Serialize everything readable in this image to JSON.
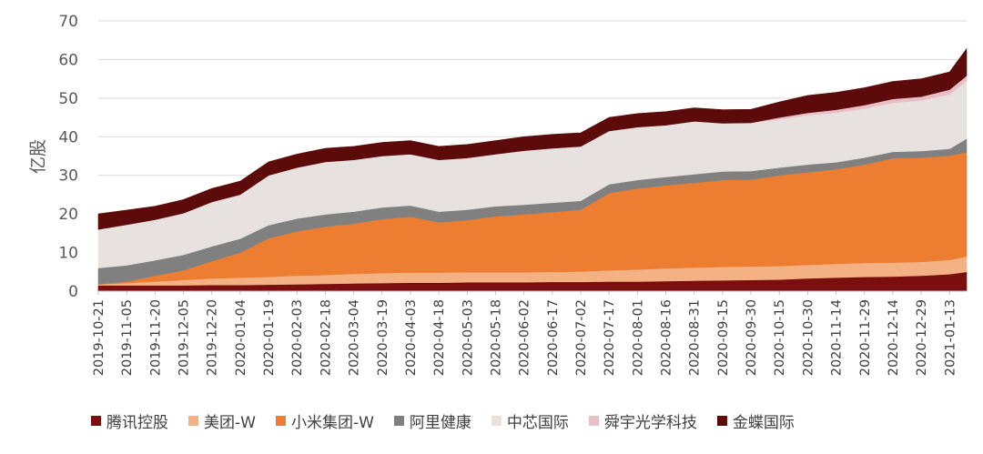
{
  "chart_data": {
    "type": "area",
    "stacked": true,
    "ylabel": "亿股",
    "ylim": [
      0,
      70
    ],
    "yticks": [
      0,
      10,
      20,
      30,
      40,
      50,
      60,
      70
    ],
    "grid": true,
    "legend_position": "bottom",
    "x": [
      "2019-10-21",
      "2019-11-05",
      "2019-11-20",
      "2019-12-05",
      "2019-12-20",
      "2020-01-04",
      "2020-01-19",
      "2020-02-03",
      "2020-02-18",
      "2020-03-04",
      "2020-03-19",
      "2020-04-03",
      "2020-04-18",
      "2020-05-03",
      "2020-05-18",
      "2020-06-02",
      "2020-06-17",
      "2020-07-02",
      "2020-07-17",
      "2020-08-01",
      "2020-08-16",
      "2020-08-31",
      "2020-09-15",
      "2020-09-30",
      "2020-10-15",
      "2020-10-30",
      "2020-11-14",
      "2020-11-29",
      "2020-12-14",
      "2020-12-29",
      "2021-01-13",
      "2021-01-22"
    ],
    "x_tick_labels": [
      "2019-10-21",
      "2019-11-05",
      "2019-11-20",
      "2019-12-05",
      "2019-12-20",
      "2020-01-04",
      "2020-01-19",
      "2020-02-03",
      "2020-02-18",
      "2020-03-04",
      "2020-03-19",
      "2020-04-03",
      "2020-04-18",
      "2020-05-03",
      "2020-05-18",
      "2020-06-02",
      "2020-06-17",
      "2020-07-02",
      "2020-07-17",
      "2020-08-01",
      "2020-08-16",
      "2020-08-31",
      "2020-09-15",
      "2020-09-30",
      "2020-10-15",
      "2020-10-30",
      "2020-11-14",
      "2020-11-29",
      "2020-12-14",
      "2020-12-29",
      "2021-01-13"
    ],
    "series": [
      {
        "name": "腾讯控股",
        "color": "#7b0e0e",
        "values": [
          1.5,
          1.5,
          1.5,
          1.5,
          1.6,
          1.6,
          1.7,
          1.8,
          1.9,
          2.0,
          2.1,
          2.2,
          2.2,
          2.3,
          2.3,
          2.3,
          2.4,
          2.4,
          2.5,
          2.5,
          2.6,
          2.7,
          2.8,
          2.9,
          3.0,
          3.3,
          3.5,
          3.7,
          3.8,
          4.0,
          4.4,
          5.0
        ]
      },
      {
        "name": "美团-W",
        "color": "#f4b183",
        "values": [
          0.3,
          0.6,
          1.0,
          1.4,
          1.7,
          1.9,
          2.0,
          2.2,
          2.3,
          2.5,
          2.6,
          2.6,
          2.6,
          2.6,
          2.6,
          2.6,
          2.6,
          2.7,
          2.9,
          3.1,
          3.3,
          3.4,
          3.5,
          3.5,
          3.5,
          3.5,
          3.6,
          3.6,
          3.6,
          3.6,
          3.7,
          4.0
        ]
      },
      {
        "name": "小米集团-W",
        "color": "#ed7d31",
        "values": [
          0.0,
          0.4,
          1.5,
          2.5,
          4.5,
          6.5,
          10.0,
          11.5,
          12.5,
          13.0,
          14.0,
          14.5,
          13.0,
          13.5,
          14.5,
          15.0,
          15.5,
          16.0,
          20.0,
          21.0,
          21.5,
          22.0,
          22.5,
          22.5,
          23.5,
          24.0,
          24.5,
          25.5,
          27.0,
          27.0,
          27.0,
          27.0
        ]
      },
      {
        "name": "阿里健康",
        "color": "#808080",
        "values": [
          4.2,
          4.2,
          4.0,
          4.0,
          3.8,
          3.6,
          3.4,
          3.3,
          3.2,
          3.1,
          3.0,
          2.9,
          2.8,
          2.7,
          2.6,
          2.5,
          2.4,
          2.3,
          2.3,
          2.2,
          2.2,
          2.2,
          2.2,
          2.2,
          2.0,
          2.0,
          1.8,
          1.8,
          1.7,
          1.7,
          1.8,
          3.5
        ]
      },
      {
        "name": "中芯国际",
        "color": "#e7e2df",
        "values": [
          10.0,
          10.5,
          10.5,
          10.8,
          11.5,
          11.4,
          12.9,
          13.2,
          13.6,
          13.4,
          13.3,
          13.3,
          13.4,
          13.4,
          13.5,
          14.0,
          14.1,
          14.1,
          13.8,
          13.7,
          13.4,
          13.7,
          12.5,
          12.5,
          12.5,
          12.8,
          12.8,
          12.7,
          12.7,
          13.1,
          14.1,
          15.0
        ]
      },
      {
        "name": "舜宇光学科技",
        "color": "#e8bfc6",
        "values": [
          0.0,
          0.0,
          0.0,
          0.0,
          0.0,
          0.0,
          0.0,
          0.0,
          0.0,
          0.0,
          0.0,
          0.0,
          0.0,
          0.0,
          0.0,
          0.0,
          0.0,
          0.0,
          0.0,
          0.0,
          0.0,
          0.0,
          0.0,
          0.0,
          0.5,
          0.6,
          0.8,
          0.9,
          1.0,
          1.0,
          1.2,
          1.3
        ]
      },
      {
        "name": "金蝶国际",
        "color": "#5c0a0a",
        "values": [
          4.0,
          3.8,
          3.5,
          3.5,
          3.5,
          3.5,
          3.5,
          3.5,
          3.5,
          3.5,
          3.5,
          3.5,
          3.5,
          3.5,
          3.5,
          3.6,
          3.6,
          3.5,
          3.5,
          3.5,
          3.5,
          3.5,
          3.5,
          3.5,
          4.0,
          4.5,
          4.5,
          4.5,
          4.5,
          4.6,
          4.6,
          7.0
        ]
      }
    ]
  }
}
